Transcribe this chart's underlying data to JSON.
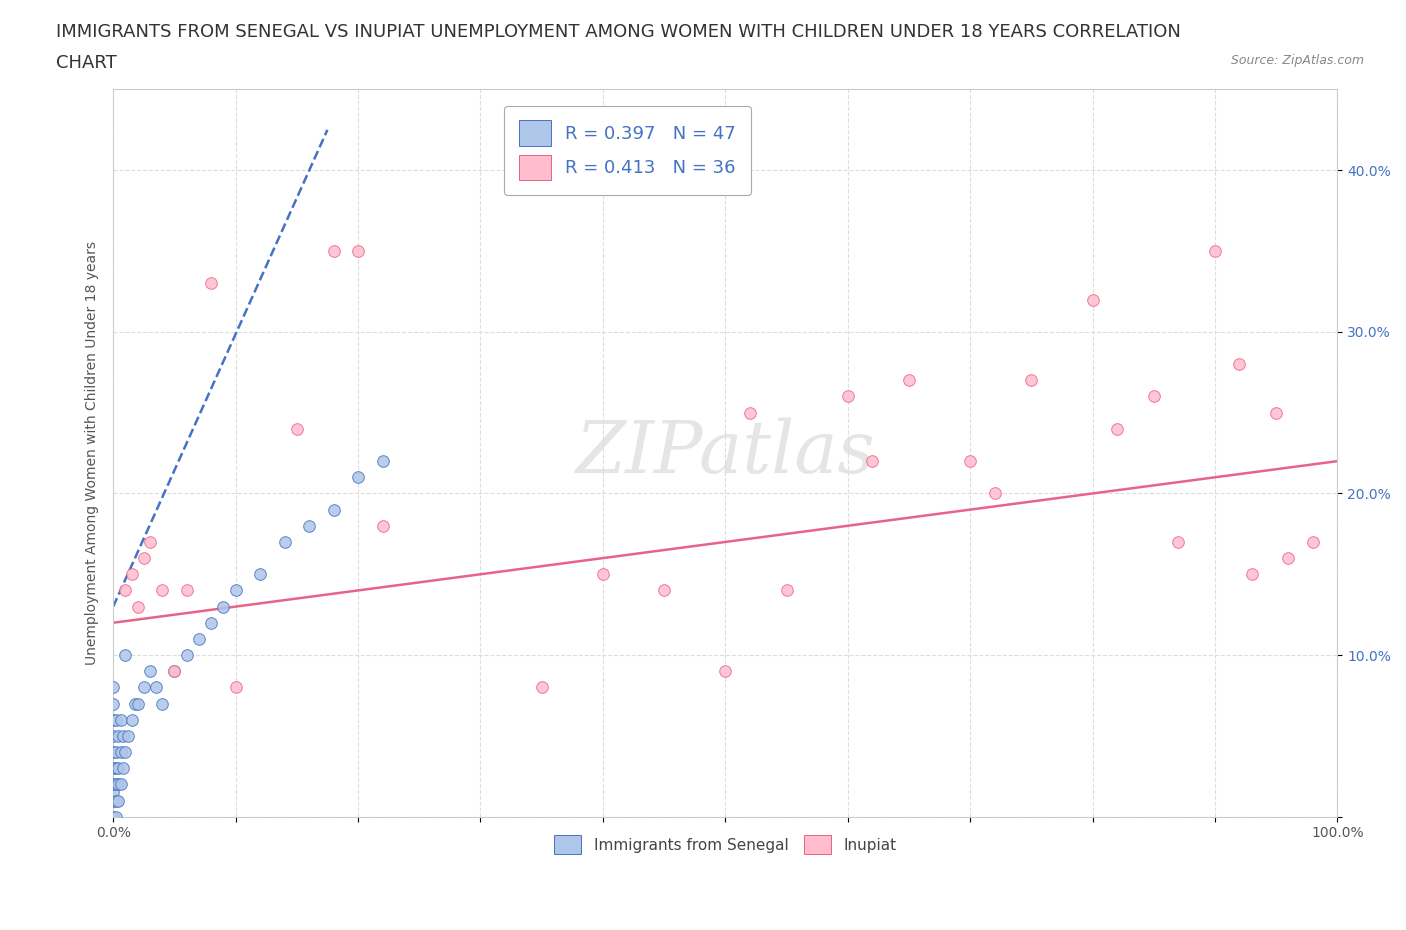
{
  "title_line1": "IMMIGRANTS FROM SENEGAL VS INUPIAT UNEMPLOYMENT AMONG WOMEN WITH CHILDREN UNDER 18 YEARS CORRELATION",
  "title_line2": "CHART",
  "source_text": "Source: ZipAtlas.com",
  "ylabel": "Unemployment Among Women with Children Under 18 years",
  "xlim": [
    0,
    1.0
  ],
  "ylim": [
    0,
    0.45
  ],
  "xticks": [
    0.0,
    0.1,
    0.2,
    0.3,
    0.4,
    0.5,
    0.6,
    0.7,
    0.8,
    0.9,
    1.0
  ],
  "yticks": [
    0.0,
    0.1,
    0.2,
    0.3,
    0.4
  ],
  "yticklabels": [
    "",
    "10.0%",
    "20.0%",
    "30.0%",
    "40.0%"
  ],
  "legend1_label": "R = 0.397   N = 47",
  "legend2_label": "R = 0.413   N = 36",
  "legend_color_text": "#4472C4",
  "watermark_text": "ZIPatlas",
  "senegal_color": "#AEC6E8",
  "senegal_edge_color": "#4472C4",
  "inupiat_color": "#FFBDCE",
  "inupiat_edge_color": "#E8638A",
  "inupiat_line_color": "#E8638A",
  "senegal_line_color": "#4472C4",
  "senegal_scatter_x": [
    0.0,
    0.0,
    0.0,
    0.0,
    0.0,
    0.0,
    0.0,
    0.0,
    0.0,
    0.0,
    0.002,
    0.002,
    0.002,
    0.002,
    0.002,
    0.002,
    0.004,
    0.004,
    0.004,
    0.004,
    0.006,
    0.006,
    0.006,
    0.008,
    0.008,
    0.01,
    0.01,
    0.012,
    0.015,
    0.018,
    0.02,
    0.025,
    0.03,
    0.035,
    0.04,
    0.05,
    0.06,
    0.07,
    0.08,
    0.09,
    0.1,
    0.12,
    0.14,
    0.16,
    0.18,
    0.2,
    0.22
  ],
  "senegal_scatter_y": [
    0.0,
    0.01,
    0.015,
    0.02,
    0.03,
    0.04,
    0.05,
    0.06,
    0.07,
    0.08,
    0.0,
    0.01,
    0.02,
    0.03,
    0.04,
    0.06,
    0.01,
    0.02,
    0.03,
    0.05,
    0.02,
    0.04,
    0.06,
    0.03,
    0.05,
    0.04,
    0.1,
    0.05,
    0.06,
    0.07,
    0.07,
    0.08,
    0.09,
    0.08,
    0.07,
    0.09,
    0.1,
    0.11,
    0.12,
    0.13,
    0.14,
    0.15,
    0.17,
    0.18,
    0.19,
    0.21,
    0.22
  ],
  "inupiat_scatter_x": [
    0.01,
    0.015,
    0.02,
    0.025,
    0.03,
    0.04,
    0.05,
    0.06,
    0.08,
    0.1,
    0.15,
    0.18,
    0.2,
    0.22,
    0.35,
    0.4,
    0.45,
    0.5,
    0.52,
    0.55,
    0.6,
    0.62,
    0.65,
    0.7,
    0.72,
    0.75,
    0.8,
    0.82,
    0.85,
    0.87,
    0.9,
    0.92,
    0.93,
    0.95,
    0.96,
    0.98
  ],
  "inupiat_scatter_y": [
    0.14,
    0.15,
    0.13,
    0.16,
    0.17,
    0.14,
    0.09,
    0.14,
    0.33,
    0.08,
    0.24,
    0.35,
    0.35,
    0.18,
    0.08,
    0.15,
    0.14,
    0.09,
    0.25,
    0.14,
    0.26,
    0.22,
    0.27,
    0.22,
    0.2,
    0.27,
    0.32,
    0.24,
    0.26,
    0.17,
    0.35,
    0.28,
    0.15,
    0.25,
    0.16,
    0.17
  ],
  "senegal_trend_x": [
    0.0,
    0.175
  ],
  "senegal_trend_y": [
    0.13,
    0.425
  ],
  "inupiat_trend_x": [
    0.0,
    1.0
  ],
  "inupiat_trend_y": [
    0.12,
    0.22
  ],
  "grid_color": "#DDDDDD",
  "grid_linestyle": "--",
  "background_color": "#FFFFFF",
  "title_fontsize": 13,
  "axis_fontsize": 10,
  "tick_fontsize": 10
}
